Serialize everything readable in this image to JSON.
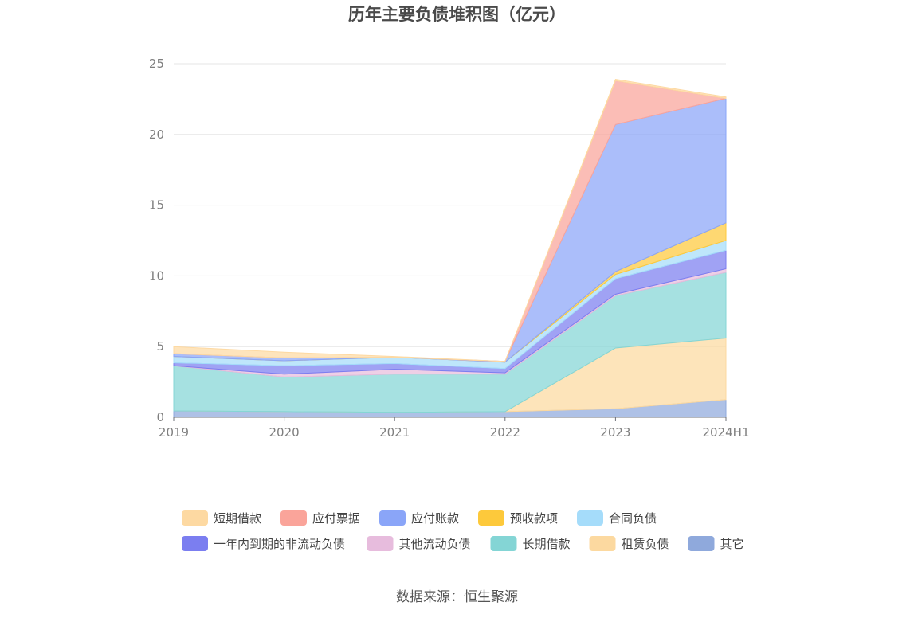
{
  "chart_data": {
    "type": "area",
    "stacked": true,
    "title": "历年主要负债堆积图（亿元）",
    "source": "数据来源：恒生聚源",
    "x": [
      "2019",
      "2020",
      "2021",
      "2022",
      "2023",
      "2024H1"
    ],
    "ylim": [
      0,
      25
    ],
    "yticks": [
      0,
      5,
      10,
      15,
      20,
      25
    ],
    "grid": true,
    "legend_position": "bottom",
    "series": [
      {
        "name": "其它",
        "color": "#8fa9dc",
        "values": [
          0.45,
          0.4,
          0.35,
          0.4,
          0.6,
          1.25
        ]
      },
      {
        "name": "租赁负债",
        "color": "#fcd9a0",
        "values": [
          0.0,
          0.0,
          0.0,
          0.0,
          4.3,
          4.35
        ]
      },
      {
        "name": "长期借款",
        "color": "#84d5d5",
        "values": [
          3.2,
          2.45,
          2.7,
          2.65,
          3.7,
          4.65
        ]
      },
      {
        "name": "其他流动负债",
        "color": "#e7bcdd",
        "values": [
          0.0,
          0.2,
          0.35,
          0.1,
          0.1,
          0.25
        ]
      },
      {
        "name": "一年内到期的非流动负债",
        "color": "#7b7ef0",
        "values": [
          0.2,
          0.6,
          0.4,
          0.3,
          1.1,
          1.3
        ]
      },
      {
        "name": "合同负债",
        "color": "#a5dcfa",
        "values": [
          0.45,
          0.35,
          0.45,
          0.45,
          0.3,
          0.7
        ]
      },
      {
        "name": "预收款项",
        "color": "#fdc93b",
        "values": [
          0.0,
          0.0,
          0.0,
          0.0,
          0.2,
          1.25
        ]
      },
      {
        "name": "应付账款",
        "color": "#8aa5f8",
        "values": [
          0.2,
          0.2,
          0.0,
          0.05,
          10.4,
          8.8
        ]
      },
      {
        "name": "应付票据",
        "color": "#faa49a",
        "values": [
          0.0,
          0.0,
          0.0,
          0.0,
          3.1,
          0.0
        ]
      },
      {
        "name": "短期借款",
        "color": "#fdd9a2",
        "values": [
          0.5,
          0.4,
          0.05,
          0.0,
          0.1,
          0.1
        ]
      }
    ],
    "legend_order": [
      "短期借款",
      "应付票据",
      "应付账款",
      "预收款项",
      "合同负债",
      "一年内到期的非流动负债",
      "其他流动负债",
      "长期借款",
      "租赁负债",
      "其它"
    ]
  }
}
